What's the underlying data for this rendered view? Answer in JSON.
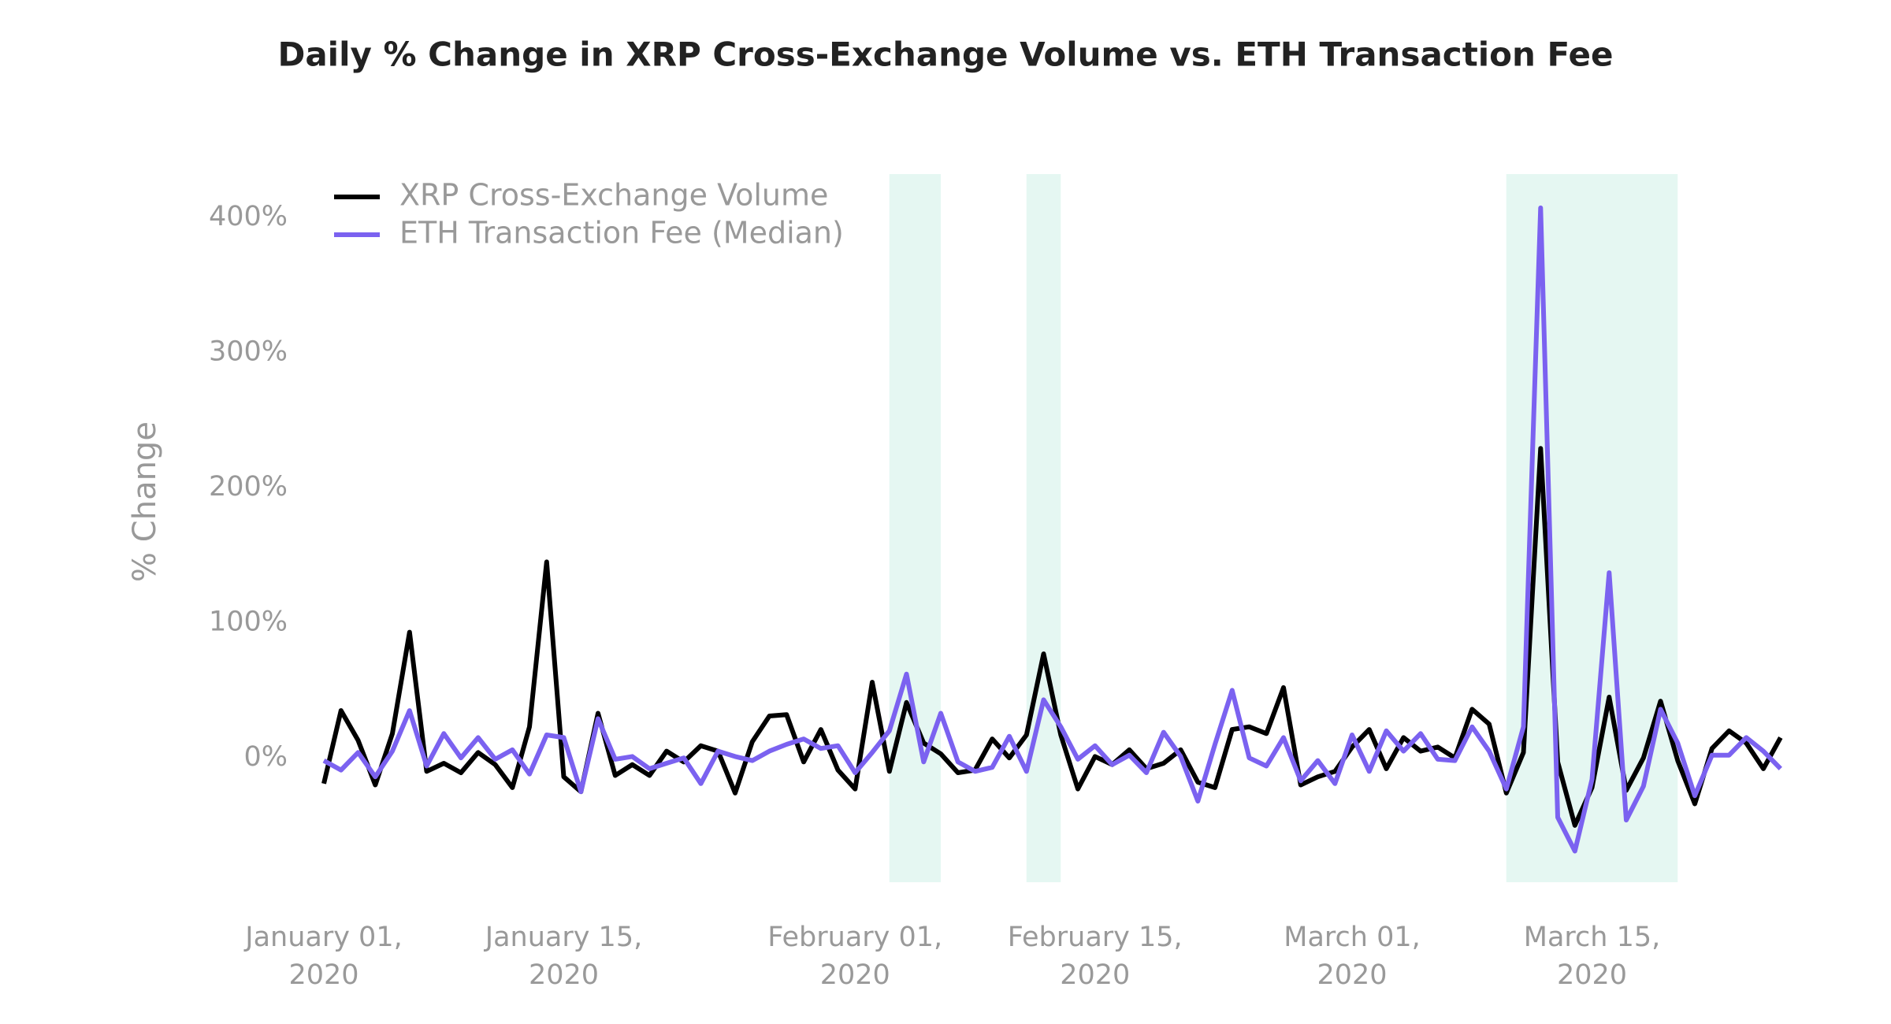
{
  "chart_data": {
    "type": "line",
    "title": "Daily % Change in XRP Cross-Exchange Volume vs. ETH Transaction Fee",
    "ylabel": "% Change",
    "x": [
      "2020-01-01",
      "2020-01-02",
      "2020-01-03",
      "2020-01-04",
      "2020-01-05",
      "2020-01-06",
      "2020-01-07",
      "2020-01-08",
      "2020-01-09",
      "2020-01-10",
      "2020-01-11",
      "2020-01-12",
      "2020-01-13",
      "2020-01-14",
      "2020-01-15",
      "2020-01-16",
      "2020-01-17",
      "2020-01-18",
      "2020-01-19",
      "2020-01-20",
      "2020-01-21",
      "2020-01-22",
      "2020-01-23",
      "2020-01-24",
      "2020-01-25",
      "2020-01-26",
      "2020-01-27",
      "2020-01-28",
      "2020-01-29",
      "2020-01-30",
      "2020-01-31",
      "2020-02-01",
      "2020-02-02",
      "2020-02-03",
      "2020-02-04",
      "2020-02-05",
      "2020-02-06",
      "2020-02-07",
      "2020-02-08",
      "2020-02-09",
      "2020-02-10",
      "2020-02-11",
      "2020-02-12",
      "2020-02-13",
      "2020-02-14",
      "2020-02-15",
      "2020-02-16",
      "2020-02-17",
      "2020-02-18",
      "2020-02-19",
      "2020-02-20",
      "2020-02-21",
      "2020-02-22",
      "2020-02-23",
      "2020-02-24",
      "2020-02-25",
      "2020-02-26",
      "2020-02-27",
      "2020-02-28",
      "2020-02-29",
      "2020-03-01",
      "2020-03-02",
      "2020-03-03",
      "2020-03-04",
      "2020-03-05",
      "2020-03-06",
      "2020-03-07",
      "2020-03-08",
      "2020-03-09",
      "2020-03-10",
      "2020-03-11",
      "2020-03-12",
      "2020-03-13",
      "2020-03-14",
      "2020-03-15",
      "2020-03-16",
      "2020-03-17",
      "2020-03-18",
      "2020-03-19",
      "2020-03-20",
      "2020-03-21",
      "2020-03-22",
      "2020-03-23",
      "2020-03-24",
      "2020-03-25",
      "2020-03-26"
    ],
    "series": [
      {
        "name": "XRP Cross-Exchange Volume",
        "color": "#000000",
        "values": [
          -19,
          35,
          13,
          -20,
          18,
          93,
          -10,
          -4,
          -11,
          4,
          -5,
          -22,
          23,
          145,
          -14,
          -25,
          33,
          -13,
          -5,
          -13,
          5,
          -3,
          9,
          5,
          -26,
          12,
          31,
          32,
          -3,
          21,
          -9,
          -23,
          56,
          -10,
          41,
          11,
          3,
          -11,
          -9,
          14,
          0,
          17,
          77,
          17,
          -23,
          1,
          -5,
          6,
          -8,
          -4,
          6,
          -18,
          -22,
          21,
          23,
          18,
          52,
          -20,
          -14,
          -10,
          8,
          21,
          -8,
          15,
          5,
          8,
          0,
          36,
          25,
          -26,
          4,
          229,
          -3,
          -50,
          -22,
          45,
          -24,
          0,
          42,
          -2,
          -34,
          7,
          20,
          11,
          -8,
          15
        ]
      },
      {
        "name": "ETH Transaction Fee (Median)",
        "color": "#7b62f0",
        "values": [
          -2,
          -9,
          4,
          -14,
          5,
          35,
          -6,
          18,
          0,
          15,
          -1,
          6,
          -12,
          17,
          15,
          -25,
          29,
          -1,
          1,
          -8,
          -4,
          0,
          -19,
          5,
          1,
          -2,
          5,
          10,
          14,
          7,
          9,
          -11,
          4,
          20,
          62,
          -3,
          33,
          -3,
          -10,
          -7,
          16,
          -10,
          43,
          23,
          -1,
          9,
          -5,
          2,
          -11,
          19,
          1,
          -32,
          10,
          50,
          0,
          -6,
          15,
          -17,
          -2,
          -19,
          17,
          -10,
          20,
          5,
          18,
          -1,
          -2,
          23,
          5,
          -23,
          23,
          407,
          -44,
          -69,
          -16,
          137,
          -46,
          -21,
          36,
          11,
          -28,
          2,
          2,
          15,
          5,
          -8
        ]
      }
    ],
    "xticks": [
      {
        "value": "2020-01-01",
        "label": "January 01, 2020"
      },
      {
        "value": "2020-01-15",
        "label": "January 15, 2020"
      },
      {
        "value": "2020-02-01",
        "label": "February 01, 2020"
      },
      {
        "value": "2020-02-15",
        "label": "February 15, 2020"
      },
      {
        "value": "2020-03-01",
        "label": "March 01, 2020"
      },
      {
        "value": "2020-03-15",
        "label": "March 15, 2020"
      }
    ],
    "ylim": [
      -92,
      432
    ],
    "yticks": [
      {
        "value": 0,
        "label": "0%"
      },
      {
        "value": 100,
        "label": "100%"
      },
      {
        "value": 200,
        "label": "200%"
      },
      {
        "value": 300,
        "label": "300%"
      },
      {
        "value": 400,
        "label": "400%"
      }
    ],
    "highlights": [
      {
        "start": "2020-02-03",
        "end": "2020-02-06",
        "color": "#e5f7f2"
      },
      {
        "start": "2020-02-11",
        "end": "2020-02-13",
        "color": "#e5f7f2"
      },
      {
        "start": "2020-03-10",
        "end": "2020-03-20",
        "color": "#e5f7f2"
      }
    ],
    "grid": false,
    "legend": "upper left"
  }
}
